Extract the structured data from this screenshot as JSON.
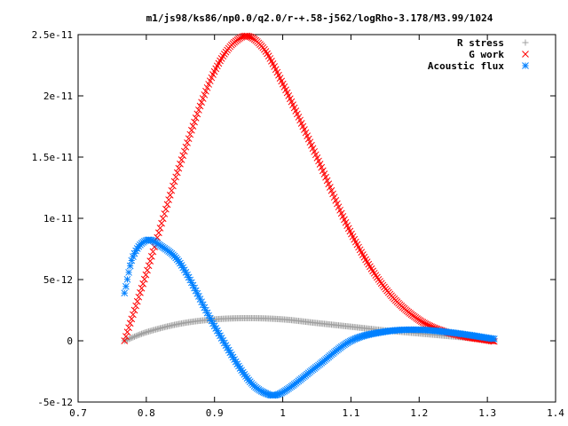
{
  "chart_data": {
    "type": "scatter",
    "title": "m1/js98/ks86/np0.0/q2.0/r-+.58-j562/logRho-3.178/M3.99/1024",
    "xlabel": "",
    "ylabel": "",
    "xlim": [
      0.7,
      1.4
    ],
    "ylim": [
      -5e-12,
      2.5e-11
    ],
    "x_ticks": [
      0.7,
      0.8,
      0.9,
      1.0,
      1.1,
      1.2,
      1.3,
      1.4
    ],
    "x_tick_labels": [
      "0.7",
      "0.8",
      "0.9",
      "1",
      "1.1",
      "1.2",
      "1.3",
      "1.4"
    ],
    "y_ticks": [
      -5e-12,
      0,
      5e-12,
      1e-11,
      1.5e-11,
      2e-11,
      2.5e-11
    ],
    "y_tick_labels": [
      "-5e-12",
      "0",
      "5e-12",
      "1e-11",
      "1.5e-11",
      "2e-11",
      "2.5e-11"
    ],
    "grid": false,
    "legend_position": "top-right",
    "series": [
      {
        "name": "R stress",
        "color": "#a0a0a0",
        "marker": "plus",
        "x": [
          0.768,
          0.8,
          0.85,
          0.9,
          0.95,
          1.0,
          1.05,
          1.1,
          1.15,
          1.2,
          1.25,
          1.31
        ],
        "y": [
          0.0,
          7e-13,
          1.4e-12,
          1.75e-12,
          1.85e-12,
          1.75e-12,
          1.45e-12,
          1.15e-12,
          8.5e-13,
          6e-13,
          3.5e-13,
          5e-14
        ]
      },
      {
        "name": "G work",
        "color": "#ff0000",
        "marker": "cross",
        "x": [
          0.768,
          0.8,
          0.85,
          0.9,
          0.94,
          0.97,
          1.0,
          1.05,
          1.1,
          1.15,
          1.2,
          1.25,
          1.31
        ],
        "y": [
          0.0,
          5.5e-12,
          1.45e-11,
          2.2e-11,
          2.48e-11,
          2.4e-11,
          2.1e-11,
          1.5e-11,
          8.8e-12,
          4.3e-12,
          1.7e-12,
          5.5e-13,
          -5e-14
        ]
      },
      {
        "name": "Acoustic flux",
        "color": "#0080ff",
        "marker": "star",
        "x": [
          0.768,
          0.78,
          0.8,
          0.82,
          0.85,
          0.9,
          0.95,
          0.98,
          1.0,
          1.05,
          1.1,
          1.15,
          1.2,
          1.25,
          1.31
        ],
        "y": [
          3.9e-12,
          6.8e-12,
          8.2e-12,
          7.8e-12,
          6.3e-12,
          1.2e-12,
          -3.2e-12,
          -4.4e-12,
          -4.2e-12,
          -2.1e-12,
          0.0,
          7.5e-13,
          9e-13,
          6.5e-13,
          1.5e-13
        ]
      }
    ]
  }
}
